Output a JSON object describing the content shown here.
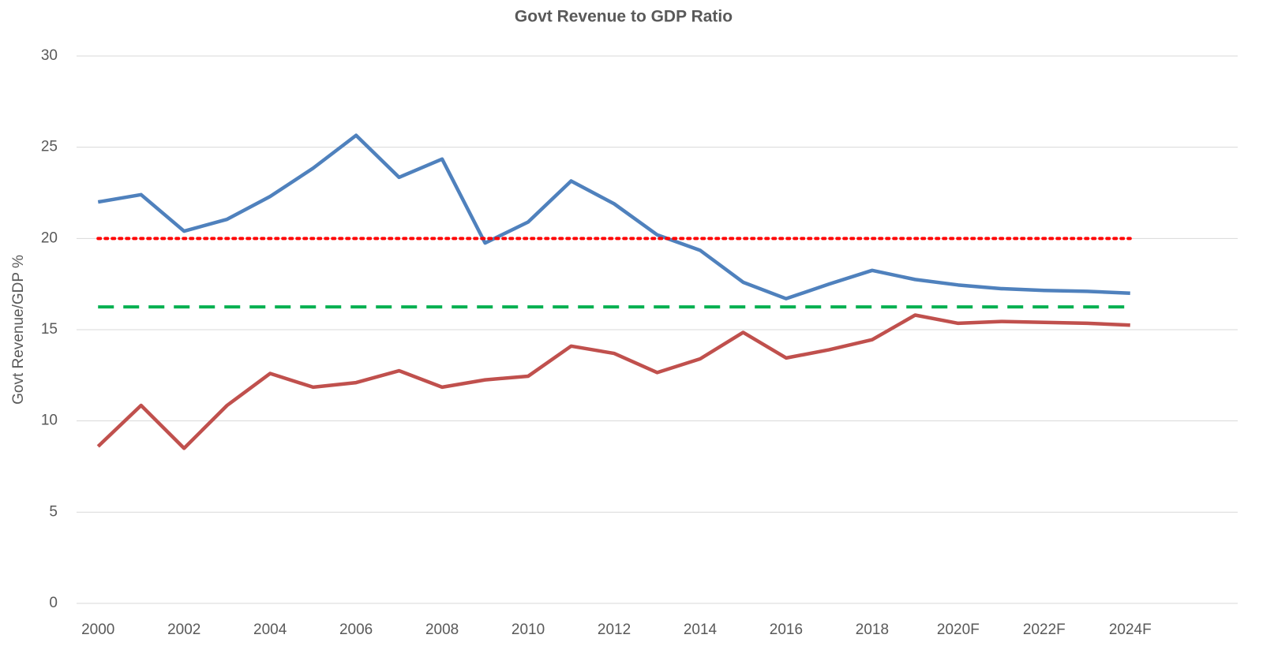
{
  "chart_data": {
    "type": "line",
    "title": "Govt Revenue to GDP Ratio",
    "y_label": "Govt Revenue/GDP %",
    "categories": [
      "2000",
      null,
      "2002",
      null,
      "2004",
      null,
      "2006",
      null,
      "2008",
      null,
      "2010",
      null,
      "2012",
      null,
      "2014",
      null,
      "2016",
      null,
      "2018",
      null,
      "2020F",
      null,
      "2022F",
      null,
      "2024F",
      null,
      null
    ],
    "series": [
      {
        "color": "#4f81bd",
        "style": "solid",
        "values": [
          22.0,
          22.4,
          20.4,
          21.05,
          22.3,
          23.85,
          25.65,
          23.35,
          24.35,
          19.75,
          20.9,
          23.15,
          21.9,
          20.2,
          19.35,
          17.6,
          16.7,
          17.5,
          18.25,
          17.75,
          17.45,
          17.25,
          17.15,
          17.1,
          17.0,
          null,
          null
        ]
      },
      {
        "color": "#c0504d",
        "style": "solid",
        "values": [
          8.6,
          10.85,
          8.5,
          10.85,
          12.6,
          11.85,
          12.1,
          12.75,
          11.85,
          12.25,
          12.45,
          14.1,
          13.7,
          12.65,
          13.4,
          14.85,
          13.45,
          13.9,
          14.45,
          15.8,
          15.35,
          15.45,
          15.4,
          15.35,
          15.25,
          null,
          null
        ]
      },
      {
        "color": "#ff0000",
        "style": "dotted",
        "values": [
          20,
          20,
          20,
          20,
          20,
          20,
          20,
          20,
          20,
          20,
          20,
          20,
          20,
          20,
          20,
          20,
          20,
          20,
          20,
          20,
          20,
          20,
          20,
          20,
          20,
          null,
          null
        ]
      },
      {
        "color": "#00b050",
        "style": "dashed",
        "values": [
          16.25,
          16.25,
          16.25,
          16.25,
          16.25,
          16.25,
          16.25,
          16.25,
          16.25,
          16.25,
          16.25,
          16.25,
          16.25,
          16.25,
          16.25,
          16.25,
          16.25,
          16.25,
          16.25,
          16.25,
          16.25,
          16.25,
          16.25,
          16.25,
          16.25,
          null,
          null
        ]
      }
    ],
    "ylim": [
      0,
      30
    ],
    "yticks": [
      0,
      5,
      10,
      15,
      20,
      25,
      30
    ],
    "grid": true
  }
}
